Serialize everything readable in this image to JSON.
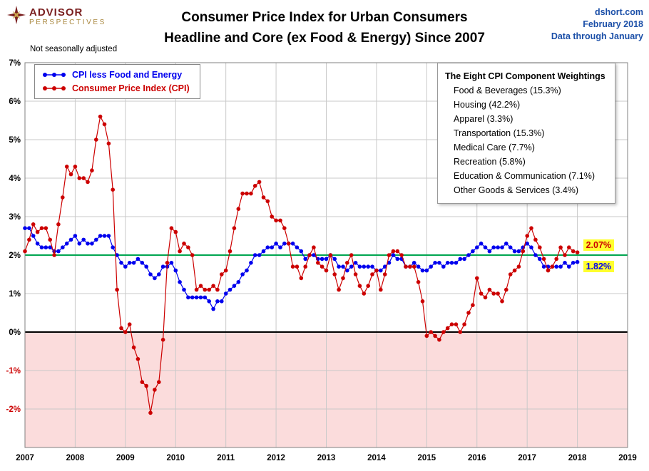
{
  "header": {
    "logo": {
      "line1": "ADVISOR",
      "line2": "PERSPECTIVES"
    },
    "title_line1": "Consumer Price Index for Urban Consumers",
    "title_line2": "Headline and Core (ex Food & Energy) Since 2007",
    "source": "dshort.com",
    "date": "February 2018",
    "data_through": "Data through January"
  },
  "chart_note": "Not seasonally adjusted",
  "legend": {
    "items": [
      {
        "label": "CPI less Food and Energy",
        "color": "#0000ee"
      },
      {
        "label": "Consumer Price Index (CPI)",
        "color": "#cc0000"
      }
    ]
  },
  "weightings_box": {
    "title": "The Eight CPI Component Weightings",
    "items": [
      "Food & Beverages (15.3%)",
      "Housing (42.2%)",
      "Apparel (3.3%)",
      "Transportation (15.3%)",
      "Medical Care (7.7%)",
      "Recreation (5.8%)",
      "Education & Communication (7.1%)",
      "Other Goods & Services (3.4%)"
    ]
  },
  "end_labels": [
    {
      "text": "2.07%",
      "value": 2.07,
      "color": "#cc0000",
      "background": "#ffff2e"
    },
    {
      "text": "1.82%",
      "value": 1.82,
      "color": "#0000ee",
      "background": "#ffff2e"
    }
  ],
  "chart_data": {
    "type": "line",
    "title": "Consumer Price Index for Urban Consumers — Headline and Core (ex Food & Energy) Since 2007",
    "x_unit": "monthly, Jan 2007 - Jan 2018",
    "xlim": [
      2007,
      2019
    ],
    "ylim": [
      -3,
      7
    ],
    "x_labels": [
      "2007",
      "2008",
      "2009",
      "2010",
      "2011",
      "2012",
      "2013",
      "2014",
      "2015",
      "2016",
      "2017",
      "2018",
      "2019"
    ],
    "y_ticks": [
      "7%",
      "6%",
      "5%",
      "4%",
      "3%",
      "2%",
      "1%",
      "0%",
      "-1%",
      "-2%"
    ],
    "grid": true,
    "below_zero_fill": "#fbdcdc",
    "reference_lines": [
      {
        "value": 2,
        "color": "#00a550",
        "name": "2-percent-target"
      },
      {
        "value": 0,
        "color": "#000000",
        "name": "zero-line"
      }
    ],
    "series": [
      {
        "name": "CPI less Food and Energy",
        "color": "#0000ee",
        "values": [
          2.7,
          2.7,
          2.5,
          2.3,
          2.2,
          2.2,
          2.2,
          2.1,
          2.1,
          2.2,
          2.3,
          2.4,
          2.5,
          2.3,
          2.4,
          2.3,
          2.3,
          2.4,
          2.5,
          2.5,
          2.5,
          2.2,
          2.0,
          1.8,
          1.7,
          1.8,
          1.8,
          1.9,
          1.8,
          1.7,
          1.5,
          1.4,
          1.5,
          1.7,
          1.7,
          1.8,
          1.6,
          1.3,
          1.1,
          0.9,
          0.9,
          0.9,
          0.9,
          0.9,
          0.8,
          0.6,
          0.8,
          0.8,
          1.0,
          1.1,
          1.2,
          1.3,
          1.5,
          1.6,
          1.8,
          2.0,
          2.0,
          2.1,
          2.2,
          2.2,
          2.3,
          2.2,
          2.3,
          2.3,
          2.3,
          2.2,
          2.1,
          1.9,
          2.0,
          2.0,
          1.9,
          1.9,
          1.9,
          2.0,
          1.9,
          1.7,
          1.7,
          1.6,
          1.7,
          1.8,
          1.7,
          1.7,
          1.7,
          1.7,
          1.6,
          1.6,
          1.7,
          1.8,
          2.0,
          1.9,
          1.9,
          1.7,
          1.7,
          1.8,
          1.7,
          1.6,
          1.6,
          1.7,
          1.8,
          1.8,
          1.7,
          1.8,
          1.8,
          1.8,
          1.9,
          1.9,
          2.0,
          2.1,
          2.2,
          2.3,
          2.2,
          2.1,
          2.2,
          2.2,
          2.2,
          2.3,
          2.2,
          2.1,
          2.1,
          2.2,
          2.3,
          2.2,
          2.0,
          1.9,
          1.7,
          1.7,
          1.7,
          1.7,
          1.7,
          1.8,
          1.7,
          1.8,
          1.82
        ]
      },
      {
        "name": "Consumer Price Index (CPI)",
        "color": "#cc0000",
        "values": [
          2.1,
          2.4,
          2.8,
          2.6,
          2.7,
          2.7,
          2.4,
          2.0,
          2.8,
          3.5,
          4.3,
          4.1,
          4.3,
          4.0,
          4.0,
          3.9,
          4.2,
          5.0,
          5.6,
          5.4,
          4.9,
          3.7,
          1.1,
          0.1,
          0.0,
          0.2,
          -0.4,
          -0.7,
          -1.3,
          -1.4,
          -2.1,
          -1.5,
          -1.3,
          -0.2,
          1.8,
          2.7,
          2.6,
          2.1,
          2.3,
          2.2,
          2.0,
          1.1,
          1.2,
          1.1,
          1.1,
          1.2,
          1.1,
          1.5,
          1.6,
          2.1,
          2.7,
          3.2,
          3.6,
          3.6,
          3.6,
          3.8,
          3.9,
          3.5,
          3.4,
          3.0,
          2.9,
          2.9,
          2.7,
          2.3,
          1.7,
          1.7,
          1.4,
          1.7,
          2.0,
          2.2,
          1.8,
          1.7,
          1.6,
          2.0,
          1.5,
          1.1,
          1.4,
          1.8,
          2.0,
          1.5,
          1.2,
          1.0,
          1.2,
          1.5,
          1.6,
          1.1,
          1.5,
          2.0,
          2.1,
          2.1,
          2.0,
          1.7,
          1.7,
          1.7,
          1.3,
          0.8,
          -0.1,
          0.0,
          -0.1,
          -0.2,
          0.0,
          0.1,
          0.2,
          0.2,
          0.0,
          0.2,
          0.5,
          0.7,
          1.4,
          1.0,
          0.9,
          1.1,
          1.0,
          1.0,
          0.8,
          1.1,
          1.5,
          1.6,
          1.7,
          2.1,
          2.5,
          2.7,
          2.4,
          2.2,
          1.9,
          1.6,
          1.7,
          1.9,
          2.2,
          2.0,
          2.2,
          2.1,
          2.07
        ]
      }
    ]
  }
}
